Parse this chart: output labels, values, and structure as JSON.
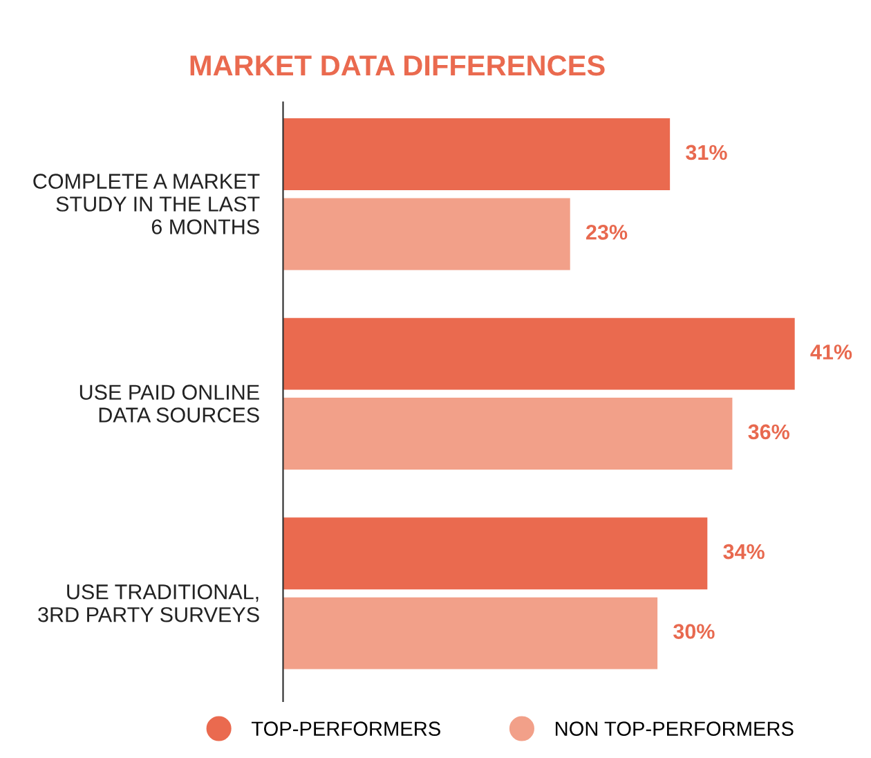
{
  "chart_data": {
    "type": "bar",
    "orientation": "horizontal",
    "title": "MARKET DATA DIFFERENCES",
    "categories": [
      "COMPLETE A MARKET\nSTUDY IN THE LAST\n6 MONTHS",
      "USE PAID ONLINE\nDATA SOURCES",
      "USE TRADITIONAL,\n3RD PARTY SURVEYS"
    ],
    "series": [
      {
        "name": "TOP-PERFORMERS",
        "color": "#ea6a4f",
        "values": [
          31,
          41,
          34
        ],
        "value_labels": [
          "31%",
          "41%",
          "34%"
        ]
      },
      {
        "name": "NON TOP-PERFORMERS",
        "color": "#f2a089",
        "values": [
          23,
          36,
          30
        ],
        "value_labels": [
          "23%",
          "36%",
          "30%"
        ]
      }
    ],
    "legend": "bottom",
    "grid": false
  }
}
